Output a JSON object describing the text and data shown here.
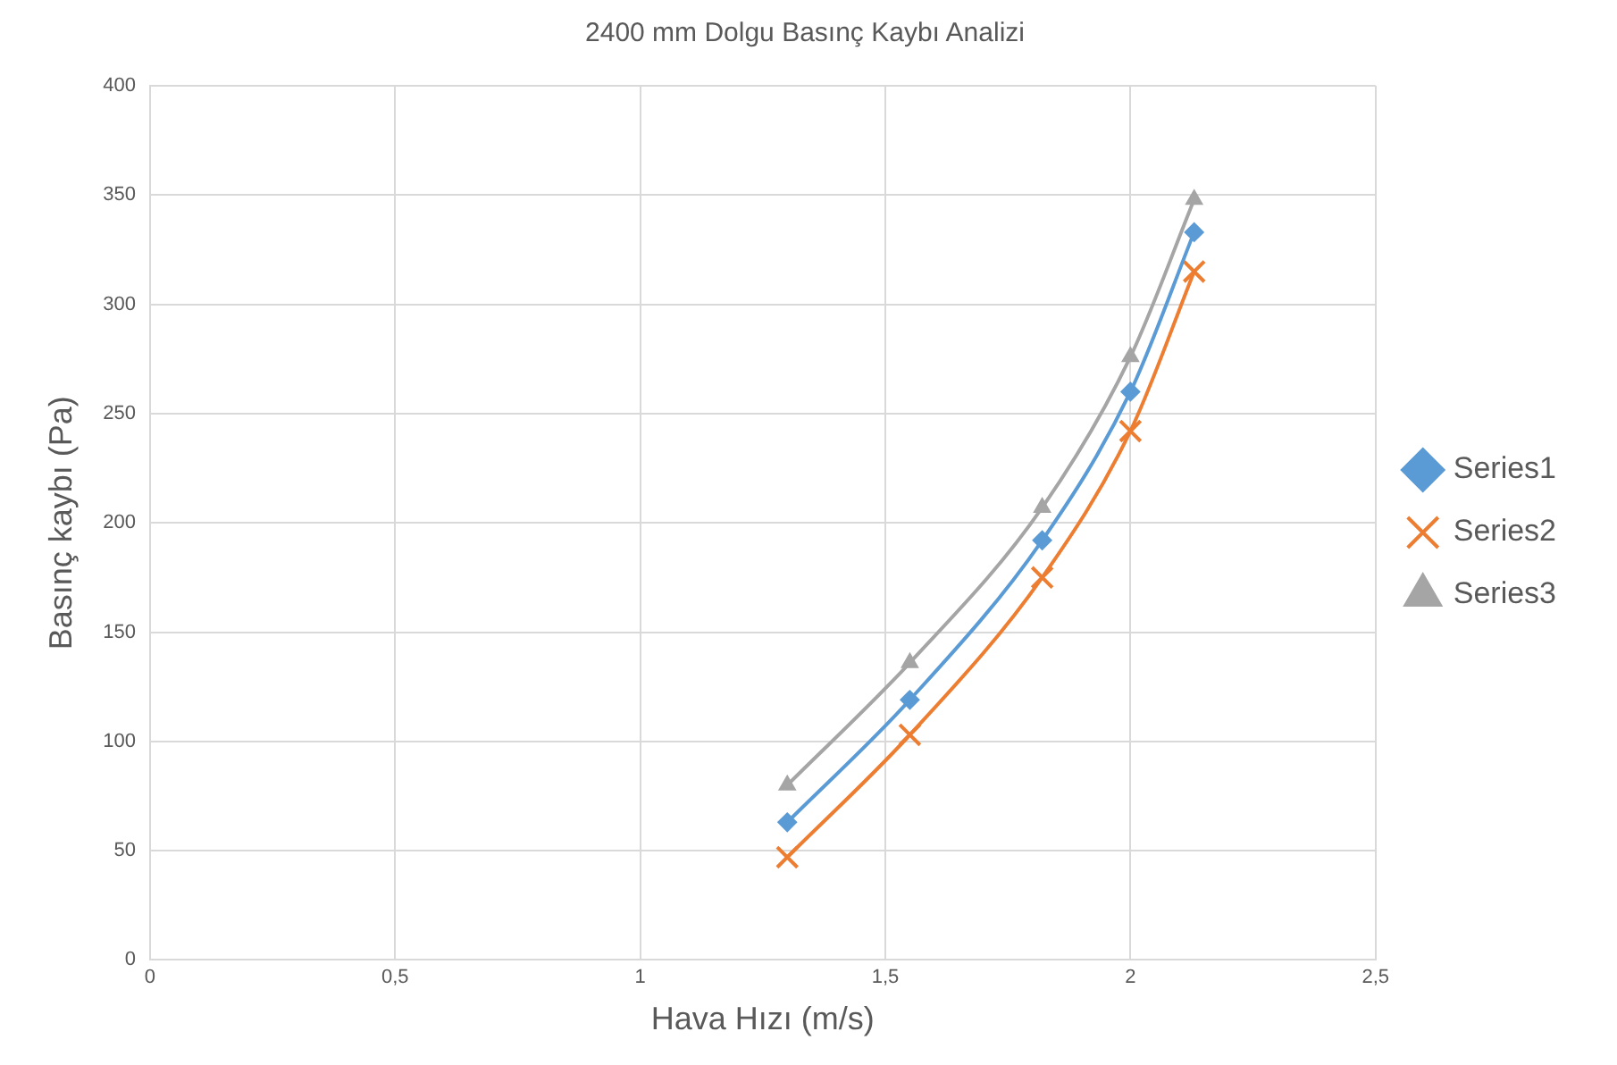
{
  "chart_data": {
    "type": "line",
    "title": "2400 mm Dolgu Basınç Kaybı Analizi",
    "xlabel": "Hava Hızı (m/s)",
    "ylabel": "Basınç kaybı (Pa)",
    "x": [
      1.3,
      1.55,
      1.82,
      2.0,
      2.13
    ],
    "series": [
      {
        "name": "Series1",
        "color": "#5b9bd5",
        "marker": "diamond",
        "values": [
          63,
          119,
          192,
          260,
          333
        ]
      },
      {
        "name": "Series2",
        "color": "#ed7d31",
        "marker": "cross",
        "values": [
          47,
          103,
          175,
          242,
          315
        ]
      },
      {
        "name": "Series3",
        "color": "#a5a5a5",
        "marker": "triangle",
        "values": [
          80,
          136,
          207,
          276,
          348
        ]
      }
    ],
    "xlim": [
      0,
      2.5
    ],
    "xticks": [
      0,
      {
        "value": 0.5,
        "label": "0,5"
      },
      1,
      {
        "value": 1.5,
        "label": "1,5"
      },
      2,
      {
        "value": 2.5,
        "label": "2,5"
      }
    ],
    "ylim": [
      0,
      400
    ],
    "yticks": [
      0,
      50,
      100,
      150,
      200,
      250,
      300,
      350,
      400
    ],
    "grid": true,
    "legend": "right",
    "line_style": "solid"
  }
}
